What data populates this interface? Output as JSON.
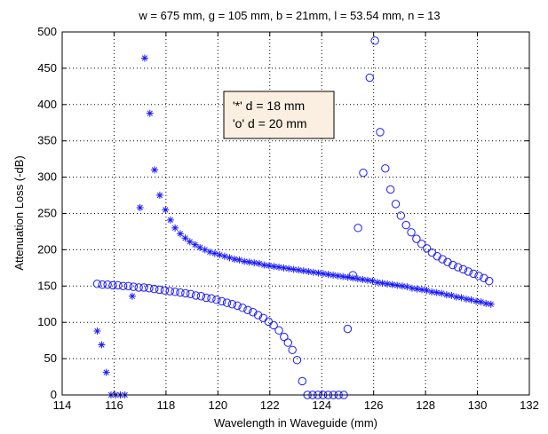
{
  "chart_data": {
    "type": "scatter",
    "title": "w = 675 mm, g = 105 mm, b = 21mm, l = 53.54 mm, n = 13",
    "xlabel": "Wavelength in Waveguide (mm)",
    "ylabel": "Attenuation Loss (-dB)",
    "xlim": [
      114,
      132
    ],
    "ylim": [
      0,
      500
    ],
    "xticks": [
      "114",
      "116",
      "118",
      "120",
      "122",
      "124",
      "126",
      "128",
      "130",
      "132"
    ],
    "yticks": [
      "0",
      "50",
      "100",
      "150",
      "200",
      "250",
      "300",
      "350",
      "400",
      "450",
      "500"
    ],
    "grid": true,
    "legend_position": "upper-center",
    "colors": {
      "series": "#1a1aff",
      "legend_bg": "#fbefe1"
    },
    "series": [
      {
        "name": "d = 18 mm",
        "legend_label": "'*'   d = 18 mm",
        "marker": "star",
        "points": [
          [
            115.35,
            88
          ],
          [
            115.52,
            69
          ],
          [
            115.7,
            31
          ],
          [
            115.88,
            0
          ],
          [
            116.06,
            0
          ],
          [
            116.24,
            0
          ],
          [
            116.42,
            0
          ],
          [
            116.7,
            136
          ],
          [
            117.0,
            258
          ],
          [
            117.18,
            464
          ],
          [
            117.38,
            388
          ],
          [
            117.56,
            310
          ],
          [
            117.76,
            275
          ],
          [
            117.98,
            255
          ],
          [
            118.17,
            241
          ],
          [
            118.35,
            230
          ],
          [
            118.55,
            222
          ],
          [
            118.74,
            216
          ],
          [
            118.92,
            211
          ],
          [
            119.12,
            207
          ],
          [
            119.31,
            203
          ],
          [
            119.5,
            200
          ],
          [
            119.69,
            197
          ],
          [
            119.88,
            195
          ],
          [
            120.07,
            193
          ],
          [
            120.26,
            191
          ],
          [
            120.45,
            189
          ],
          [
            120.64,
            187
          ],
          [
            120.83,
            186
          ],
          [
            121.02,
            184
          ],
          [
            121.21,
            183
          ],
          [
            121.4,
            182
          ],
          [
            121.59,
            181
          ],
          [
            121.78,
            179
          ],
          [
            121.97,
            178
          ],
          [
            122.16,
            177
          ],
          [
            122.35,
            176
          ],
          [
            122.54,
            175
          ],
          [
            122.73,
            174
          ],
          [
            122.92,
            173
          ],
          [
            123.11,
            172
          ],
          [
            123.3,
            171
          ],
          [
            123.49,
            170
          ],
          [
            123.68,
            169
          ],
          [
            123.87,
            168
          ],
          [
            124.06,
            167
          ],
          [
            124.25,
            166
          ],
          [
            124.44,
            165
          ],
          [
            124.63,
            164
          ],
          [
            124.82,
            163
          ],
          [
            125.01,
            162
          ],
          [
            125.2,
            161
          ],
          [
            125.39,
            160
          ],
          [
            125.58,
            159
          ],
          [
            125.77,
            158
          ],
          [
            125.96,
            157
          ],
          [
            126.15,
            155
          ],
          [
            126.34,
            154
          ],
          [
            126.53,
            153
          ],
          [
            126.72,
            152
          ],
          [
            126.91,
            151
          ],
          [
            127.1,
            150
          ],
          [
            127.29,
            149
          ],
          [
            127.48,
            147
          ],
          [
            127.67,
            146
          ],
          [
            127.86,
            145
          ],
          [
            128.05,
            144
          ],
          [
            128.24,
            142
          ],
          [
            128.43,
            141
          ],
          [
            128.62,
            140
          ],
          [
            128.81,
            138
          ],
          [
            129.0,
            137
          ],
          [
            129.19,
            135
          ],
          [
            129.38,
            134
          ],
          [
            129.57,
            132
          ],
          [
            129.76,
            131
          ],
          [
            129.95,
            129
          ],
          [
            130.14,
            128
          ],
          [
            130.33,
            126
          ],
          [
            130.52,
            125
          ]
        ]
      },
      {
        "name": "d = 20 mm",
        "legend_label": "'o'   d = 20 mm",
        "marker": "circle",
        "points": [
          [
            115.35,
            153
          ],
          [
            115.55,
            152
          ],
          [
            115.75,
            152
          ],
          [
            115.95,
            151
          ],
          [
            116.15,
            151
          ],
          [
            116.35,
            150
          ],
          [
            116.55,
            150
          ],
          [
            116.75,
            149
          ],
          [
            116.95,
            148
          ],
          [
            117.15,
            148
          ],
          [
            117.35,
            147
          ],
          [
            117.55,
            146
          ],
          [
            117.75,
            145
          ],
          [
            117.95,
            144
          ],
          [
            118.15,
            143
          ],
          [
            118.35,
            142
          ],
          [
            118.55,
            141
          ],
          [
            118.75,
            140
          ],
          [
            118.95,
            139
          ],
          [
            119.15,
            137
          ],
          [
            119.35,
            136
          ],
          [
            119.55,
            134
          ],
          [
            119.75,
            133
          ],
          [
            119.95,
            131
          ],
          [
            120.15,
            129
          ],
          [
            120.35,
            127
          ],
          [
            120.55,
            125
          ],
          [
            120.75,
            123
          ],
          [
            120.95,
            120
          ],
          [
            121.15,
            117
          ],
          [
            121.35,
            114
          ],
          [
            121.55,
            110
          ],
          [
            121.75,
            106
          ],
          [
            121.95,
            101
          ],
          [
            122.15,
            96
          ],
          [
            122.35,
            89
          ],
          [
            122.55,
            80
          ],
          [
            122.7,
            72
          ],
          [
            122.87,
            62
          ],
          [
            123.05,
            48
          ],
          [
            123.25,
            19
          ],
          [
            123.45,
            0
          ],
          [
            123.65,
            0
          ],
          [
            123.85,
            0
          ],
          [
            124.05,
            0
          ],
          [
            124.25,
            0
          ],
          [
            124.45,
            0
          ],
          [
            124.65,
            0
          ],
          [
            124.85,
            0
          ],
          [
            125.0,
            91
          ],
          [
            125.2,
            165
          ],
          [
            125.4,
            230
          ],
          [
            125.6,
            306
          ],
          [
            125.85,
            437
          ],
          [
            126.05,
            488
          ],
          [
            126.25,
            362
          ],
          [
            126.45,
            312
          ],
          [
            126.65,
            283
          ],
          [
            126.85,
            263
          ],
          [
            127.05,
            247
          ],
          [
            127.25,
            234
          ],
          [
            127.45,
            224
          ],
          [
            127.65,
            215
          ],
          [
            127.85,
            208
          ],
          [
            128.05,
            202
          ],
          [
            128.25,
            196
          ],
          [
            128.45,
            191
          ],
          [
            128.65,
            187
          ],
          [
            128.85,
            183
          ],
          [
            129.05,
            179
          ],
          [
            129.25,
            176
          ],
          [
            129.45,
            173
          ],
          [
            129.65,
            170
          ],
          [
            129.85,
            167
          ],
          [
            130.05,
            164
          ],
          [
            130.25,
            161
          ],
          [
            130.45,
            157
          ]
        ]
      }
    ]
  }
}
